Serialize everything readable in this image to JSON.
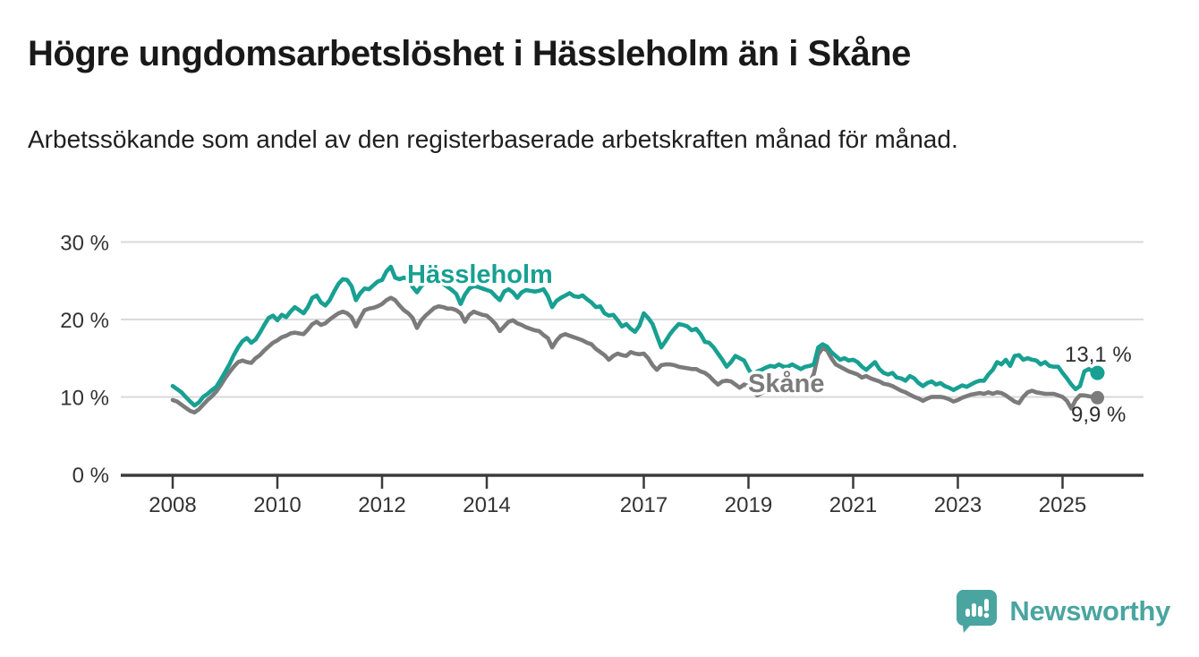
{
  "header": {
    "title": "Högre ungdomsarbetslöshet i Hässleholm än i Skåne",
    "subtitle": "Arbetssökande som andel av den registerbaserade arbetskraften månad för månad."
  },
  "branding": {
    "logo_text": "Newsworthy",
    "logo_color": "#4aa5a0",
    "logo_icon": "bar-chart-speech-bubble-icon"
  },
  "chart_data": {
    "type": "line",
    "unit": "%",
    "title": "Högre ungdomsarbetslöshet i Hässleholm än i Skåne",
    "xlabel": "",
    "ylabel": "",
    "grid": "horizontal",
    "legend_position": "inline-labels",
    "ylim": [
      0,
      33
    ],
    "xlim": [
      2007,
      2026.5
    ],
    "x_start_year": 2008,
    "points_per_year": 12,
    "x_ticks": [
      2008,
      2010,
      2012,
      2014,
      2017,
      2019,
      2021,
      2023,
      2025
    ],
    "y_ticks": [
      {
        "value": 30,
        "label": "30 %"
      },
      {
        "value": 20,
        "label": "20 %"
      },
      {
        "value": 10,
        "label": "10 %"
      },
      {
        "value": 0,
        "label": "0 %"
      }
    ],
    "series": [
      {
        "name": "Skåne",
        "color": "#7b7b7b",
        "end_label": "9,9 %",
        "latest_value": 9.9,
        "values": [
          9.6,
          9.4,
          9.0,
          8.6,
          8.2,
          8.0,
          8.4,
          9.0,
          9.6,
          10.1,
          10.7,
          11.5,
          12.4,
          13.2,
          13.9,
          14.5,
          14.7,
          14.5,
          14.4,
          15.0,
          15.4,
          16.0,
          16.5,
          17.0,
          17.3,
          17.7,
          17.9,
          18.2,
          18.3,
          18.2,
          18.1,
          18.7,
          19.4,
          19.7,
          19.3,
          19.5,
          20.0,
          20.4,
          20.8,
          21.0,
          20.8,
          20.3,
          19.1,
          20.2,
          21.2,
          21.4,
          21.5,
          21.7,
          22.0,
          22.5,
          22.8,
          22.5,
          21.8,
          21.2,
          20.8,
          20.2,
          18.9,
          19.9,
          20.5,
          21.0,
          21.5,
          21.7,
          21.6,
          21.4,
          21.4,
          21.2,
          20.8,
          19.7,
          20.6,
          21.0,
          20.8,
          20.6,
          20.5,
          20.0,
          19.4,
          18.5,
          19.1,
          19.7,
          19.9,
          19.5,
          19.3,
          19.0,
          18.8,
          18.6,
          18.5,
          18.0,
          17.6,
          16.4,
          17.3,
          17.9,
          18.1,
          17.9,
          17.7,
          17.5,
          17.3,
          17.0,
          16.8,
          16.2,
          15.8,
          15.4,
          14.8,
          15.3,
          15.6,
          15.4,
          15.3,
          15.8,
          15.6,
          15.5,
          15.6,
          15.0,
          14.1,
          13.5,
          14.1,
          14.2,
          14.2,
          14.1,
          13.9,
          13.8,
          13.7,
          13.6,
          13.6,
          13.3,
          13.1,
          12.7,
          12.1,
          11.6,
          12.0,
          12.1,
          12.0,
          11.6,
          11.2,
          11.6,
          11.4,
          10.8,
          10.2,
          10.5,
          10.8,
          10.9,
          10.8,
          10.9,
          10.8,
          10.9,
          11.0,
          10.9,
          11.0,
          11.3,
          11.8,
          13.0,
          15.5,
          16.3,
          16.0,
          15.0,
          14.2,
          13.9,
          13.6,
          13.3,
          13.1,
          12.9,
          12.5,
          12.7,
          12.4,
          12.2,
          12.0,
          11.7,
          11.6,
          11.4,
          11.1,
          10.8,
          10.6,
          10.3,
          10.0,
          9.8,
          9.5,
          9.8,
          10.0,
          10.0,
          10.0,
          9.9,
          9.7,
          9.4,
          9.6,
          9.9,
          10.1,
          10.3,
          10.4,
          10.5,
          10.4,
          10.6,
          10.4,
          10.6,
          10.5,
          10.2,
          9.8,
          9.4,
          9.2,
          10.0,
          10.6,
          10.8,
          10.6,
          10.5,
          10.4,
          10.4,
          10.4,
          10.2,
          10.0,
          9.5,
          8.5,
          9.6,
          10.2,
          10.2,
          10.1,
          10.0,
          9.9
        ]
      },
      {
        "name": "Hässleholm",
        "color": "#18a092",
        "end_label": "13,1 %",
        "latest_value": 13.1,
        "values": [
          11.4,
          11.0,
          10.6,
          10.0,
          9.4,
          8.9,
          9.3,
          10.0,
          10.4,
          10.9,
          11.3,
          12.2,
          13.2,
          14.2,
          15.4,
          16.4,
          17.2,
          17.6,
          17.0,
          17.4,
          18.3,
          19.3,
          20.2,
          20.5,
          19.9,
          20.6,
          20.3,
          21.0,
          21.6,
          21.2,
          20.8,
          21.6,
          22.8,
          23.1,
          22.2,
          21.8,
          22.5,
          23.6,
          24.6,
          25.2,
          25.1,
          24.3,
          22.5,
          23.4,
          24.0,
          23.9,
          24.4,
          24.9,
          25.1,
          26.2,
          26.8,
          25.4,
          25.2,
          25.4,
          25.2,
          24.2,
          23.5,
          24.3,
          24.8,
          25.0,
          25.2,
          25.0,
          24.6,
          24.2,
          23.8,
          23.3,
          22.0,
          23.2,
          24.0,
          24.3,
          24.2,
          24.0,
          23.8,
          23.6,
          23.0,
          22.5,
          23.6,
          23.9,
          23.5,
          22.8,
          23.5,
          23.8,
          23.7,
          23.6,
          23.7,
          23.9,
          23.0,
          21.6,
          22.4,
          22.8,
          23.1,
          23.4,
          23.0,
          22.9,
          23.1,
          22.6,
          22.2,
          21.6,
          21.7,
          20.8,
          20.5,
          20.6,
          19.9,
          19.1,
          19.4,
          18.8,
          18.4,
          19.2,
          20.8,
          20.2,
          19.4,
          17.9,
          16.4,
          17.2,
          18.1,
          18.8,
          19.4,
          19.3,
          19.1,
          18.6,
          18.8,
          18.1,
          17.1,
          17.0,
          16.4,
          15.6,
          14.8,
          13.9,
          14.5,
          15.3,
          15.0,
          14.7,
          13.6,
          12.7,
          13.3,
          13.5,
          13.8,
          14.0,
          13.9,
          14.2,
          13.9,
          13.9,
          14.2,
          13.9,
          13.6,
          13.9,
          14.0,
          14.2,
          16.4,
          16.8,
          16.5,
          15.8,
          15.3,
          14.8,
          15.0,
          14.7,
          14.8,
          14.5,
          13.9,
          13.5,
          14.0,
          14.5,
          13.6,
          13.1,
          12.9,
          13.1,
          12.5,
          12.4,
          12.1,
          12.7,
          12.4,
          11.8,
          11.4,
          11.8,
          12.0,
          11.6,
          11.8,
          11.4,
          11.2,
          10.9,
          11.2,
          11.5,
          11.3,
          11.6,
          11.9,
          12.1,
          12.1,
          12.9,
          13.5,
          14.5,
          14.2,
          14.8,
          14.0,
          15.3,
          15.4,
          14.8,
          15.0,
          14.8,
          14.7,
          14.2,
          14.5,
          14.0,
          13.9,
          13.9,
          13.1,
          12.4,
          11.6,
          11.0,
          11.4,
          13.3,
          13.6,
          13.3,
          13.1
        ]
      }
    ]
  }
}
